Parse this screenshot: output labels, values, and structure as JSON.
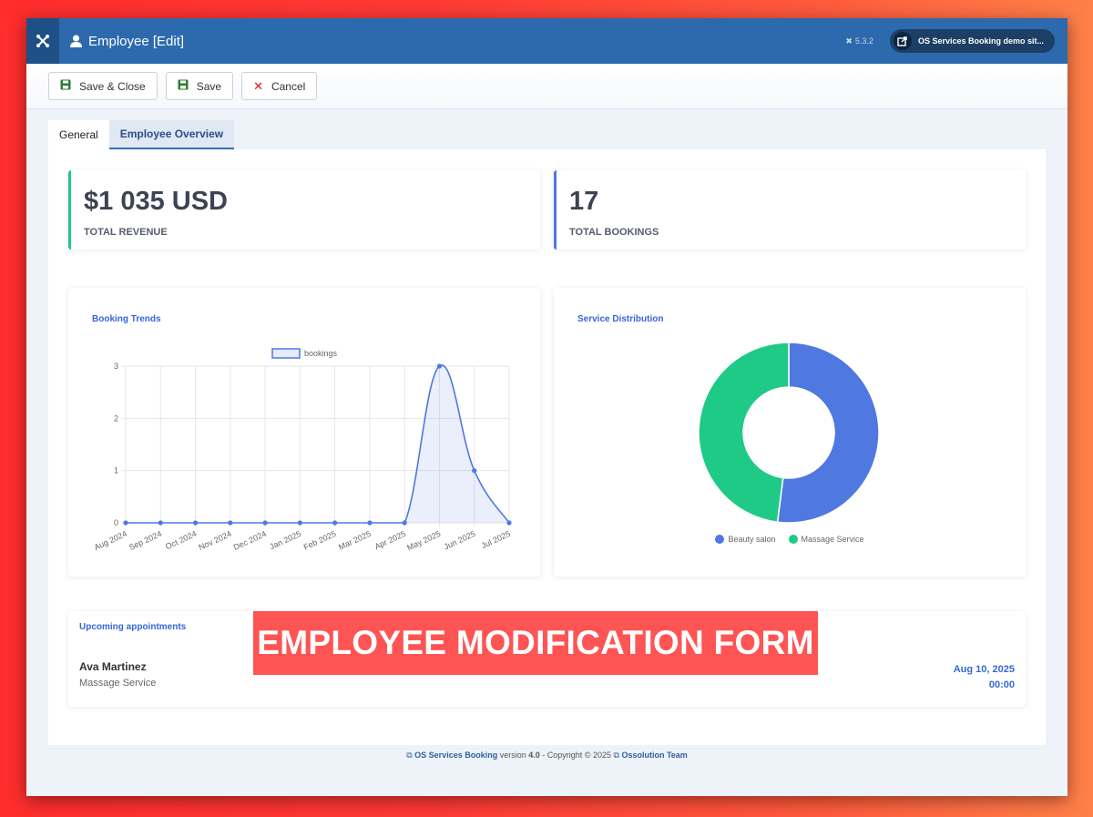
{
  "header": {
    "title": "Employee [Edit]",
    "version": "5.3.2",
    "site_link": "OS Services Booking demo sit..."
  },
  "toolbar": {
    "save_close_label": "Save & Close",
    "save_label": "Save",
    "cancel_label": "Cancel"
  },
  "tabs": [
    {
      "label": "General",
      "active": false
    },
    {
      "label": "Employee Overview",
      "active": true
    }
  ],
  "stats": {
    "revenue_value": "$1 035 USD",
    "revenue_label": "TOTAL REVENUE",
    "bookings_value": "17",
    "bookings_label": "TOTAL BOOKINGS"
  },
  "booking_trends": {
    "title": "Booking Trends"
  },
  "service_distribution": {
    "title": "Service Distribution"
  },
  "appointments": {
    "title": "Upcoming appointments",
    "items": [
      {
        "name": "Ava Martinez",
        "service": "Massage Service",
        "date": "Aug 10, 2025",
        "time": "00:00"
      }
    ]
  },
  "banner": "EMPLOYEE MODIFICATION FORM",
  "footer": {
    "product": "OS Services Booking",
    "version_text": "version",
    "version": "4.0",
    "copyright": "- Copyright © 2025",
    "team": "Ossolution Team"
  },
  "colors": {
    "header": "#2d6aad",
    "accent_blue": "#4f78e0",
    "accent_green": "#1fca86",
    "banner": "#ff5454"
  },
  "chart_data": [
    {
      "type": "line",
      "title": "Booking Trends",
      "x": [
        "Aug 2024",
        "Sep 2024",
        "Oct 2024",
        "Nov 2024",
        "Dec 2024",
        "Jan 2025",
        "Feb 2025",
        "Mar 2025",
        "Apr 2025",
        "May 2025",
        "Jun 2025",
        "Jul 2025"
      ],
      "series": [
        {
          "name": "bookings",
          "values": [
            0,
            0,
            0,
            0,
            0,
            0,
            0,
            0,
            0,
            3,
            1,
            0
          ]
        }
      ],
      "yticks": [
        "0",
        "1",
        "2",
        "3"
      ],
      "ylim": [
        0,
        3
      ],
      "grid": true,
      "legend": "top",
      "fill": true
    },
    {
      "type": "pie",
      "title": "Service Distribution",
      "categories": [
        "Beauty salon",
        "Massage Service"
      ],
      "values": [
        52,
        48
      ],
      "colors": [
        "#4f78e0",
        "#1fca86"
      ],
      "legend": "bottom"
    }
  ]
}
